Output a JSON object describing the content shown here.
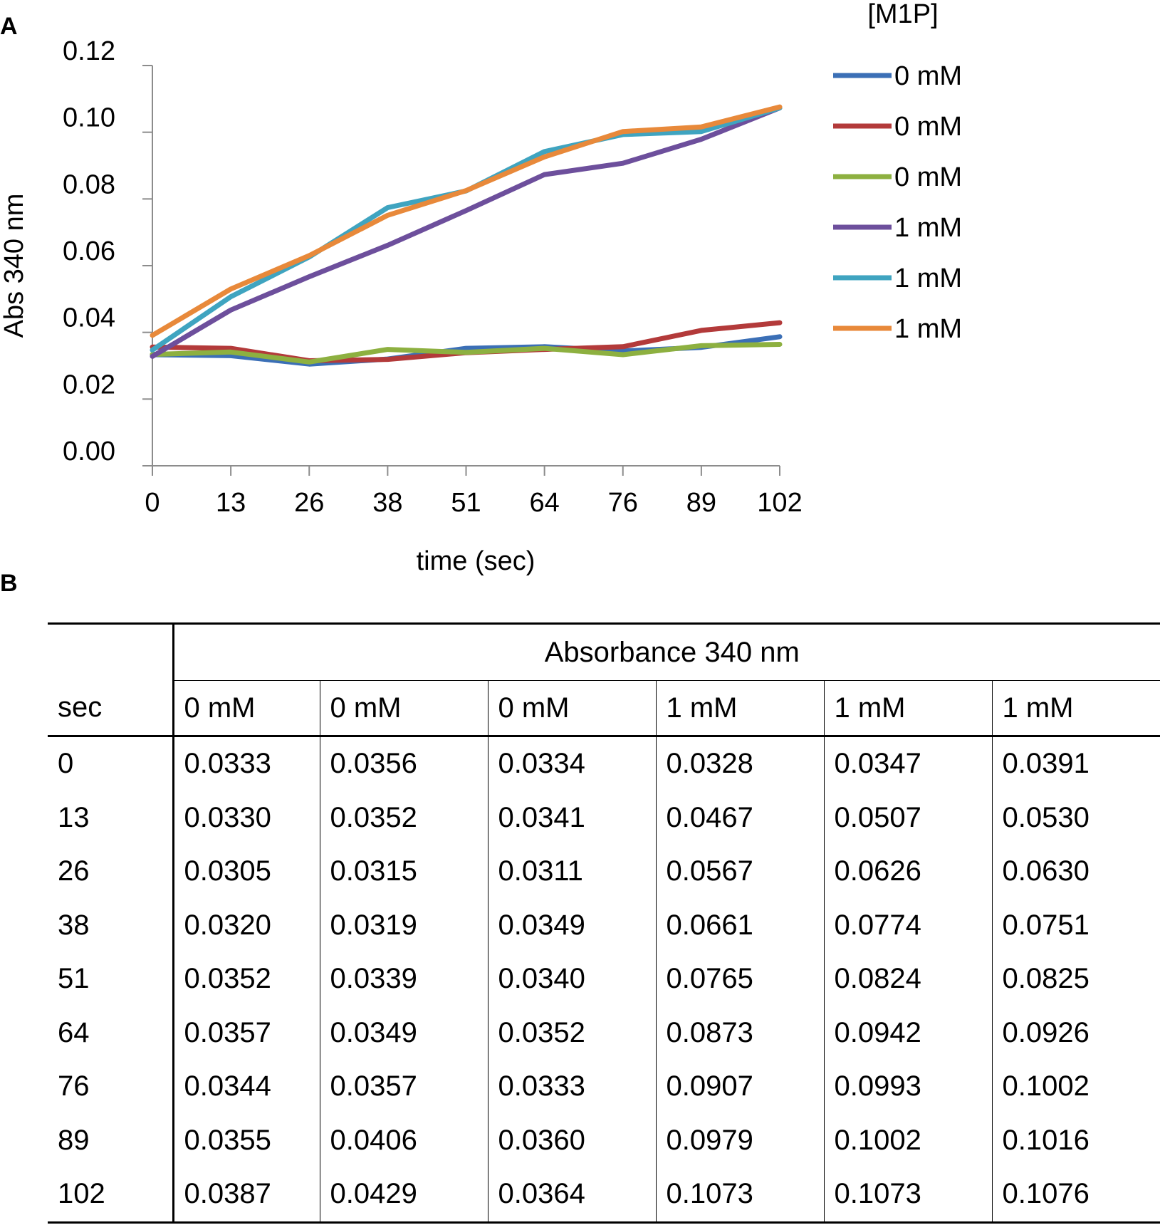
{
  "panels": {
    "a": "A",
    "b": "B"
  },
  "chart_data": {
    "type": "line",
    "ylabel": "Abs 340 nm",
    "xlabel": "time (sec)",
    "legend_title": "[M1P]",
    "legend_position": "right",
    "ylim": [
      0,
      0.12
    ],
    "yticks": [
      "0.00",
      "0.02",
      "0.04",
      "0.06",
      "0.08",
      "0.10",
      "0.12"
    ],
    "ytick_values": [
      0,
      0.02,
      0.04,
      0.06,
      0.08,
      0.1,
      0.12
    ],
    "categories": [
      "0",
      "13",
      "26",
      "38",
      "51",
      "64",
      "76",
      "89",
      "102"
    ],
    "grid": false,
    "series": [
      {
        "name": "0 mM",
        "color": "#3b6fb6",
        "values": [
          0.0333,
          0.033,
          0.0305,
          0.032,
          0.0352,
          0.0357,
          0.0344,
          0.0355,
          0.0387
        ]
      },
      {
        "name": "0 mM",
        "color": "#b33a3a",
        "values": [
          0.0356,
          0.0352,
          0.0315,
          0.0319,
          0.0339,
          0.0349,
          0.0357,
          0.0406,
          0.0429
        ]
      },
      {
        "name": "0 mM",
        "color": "#8db040",
        "values": [
          0.0334,
          0.0341,
          0.0311,
          0.0349,
          0.034,
          0.0352,
          0.0333,
          0.036,
          0.0364
        ]
      },
      {
        "name": "1 mM",
        "color": "#6d4f9c",
        "values": [
          0.0328,
          0.0467,
          0.0567,
          0.0661,
          0.0765,
          0.0873,
          0.0907,
          0.0979,
          0.1073
        ]
      },
      {
        "name": "1 mM",
        "color": "#3fa4c0",
        "values": [
          0.0347,
          0.0507,
          0.0626,
          0.0774,
          0.0824,
          0.0942,
          0.0993,
          0.1002,
          0.1073
        ]
      },
      {
        "name": "1 mM",
        "color": "#e8893a",
        "values": [
          0.0391,
          0.053,
          0.063,
          0.0751,
          0.0825,
          0.0926,
          0.1002,
          0.1016,
          0.1076
        ]
      }
    ]
  },
  "table": {
    "group_header": "Absorbance 340 nm",
    "row_header": "sec",
    "columns": [
      "0 mM",
      "0 mM",
      "0 mM",
      "1 mM",
      "1 mM",
      "1 mM"
    ],
    "rows": [
      [
        "0",
        "0.0333",
        "0.0356",
        "0.0334",
        "0.0328",
        "0.0347",
        "0.0391"
      ],
      [
        "13",
        "0.0330",
        "0.0352",
        "0.0341",
        "0.0467",
        "0.0507",
        "0.0530"
      ],
      [
        "26",
        "0.0305",
        "0.0315",
        "0.0311",
        "0.0567",
        "0.0626",
        "0.0630"
      ],
      [
        "38",
        "0.0320",
        "0.0319",
        "0.0349",
        "0.0661",
        "0.0774",
        "0.0751"
      ],
      [
        "51",
        "0.0352",
        "0.0339",
        "0.0340",
        "0.0765",
        "0.0824",
        "0.0825"
      ],
      [
        "64",
        "0.0357",
        "0.0349",
        "0.0352",
        "0.0873",
        "0.0942",
        "0.0926"
      ],
      [
        "76",
        "0.0344",
        "0.0357",
        "0.0333",
        "0.0907",
        "0.0993",
        "0.1002"
      ],
      [
        "89",
        "0.0355",
        "0.0406",
        "0.0360",
        "0.0979",
        "0.1002",
        "0.1016"
      ],
      [
        "102",
        "0.0387",
        "0.0429",
        "0.0364",
        "0.1073",
        "0.1073",
        "0.1076"
      ]
    ]
  }
}
